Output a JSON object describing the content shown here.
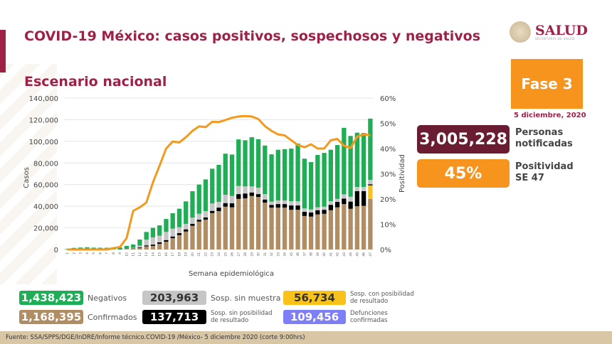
{
  "title": "COVID-19 México: casos positivos, sospechosos y negativos",
  "subtitle": "Escenario nacional",
  "logo": {
    "text": "SALUD",
    "sub": "SECRETARÍA DE SALUD"
  },
  "fase": "Fase 3",
  "fecha": "5 diciembre, 2020",
  "personas": {
    "value": "3,005,228",
    "label1": "Personas",
    "label2": "notificadas"
  },
  "positividad": {
    "value": "45%",
    "label1": "Positividad",
    "label2": "SE 47"
  },
  "colors": {
    "negativos": "#1fae55",
    "confirmados": "#b08d63",
    "sin_muestra": "#c6c6c6",
    "sin_posibilidad": "#000000",
    "con_posibilidad": "#f9c21b",
    "line": "#f39a1e",
    "defunciones": "#7e7ef7",
    "maroon": "#691c32",
    "orange": "#f7941d"
  },
  "legend": [
    {
      "value": "1,438,423",
      "label": "Negativos"
    },
    {
      "value": "1,168,395",
      "label": "Confirmados"
    },
    {
      "value": "203,963",
      "label": "Sosp. sin muestra"
    },
    {
      "value": "137,713",
      "label1": "Sosp. sin posibilidad",
      "label2": "de resultado"
    },
    {
      "value": "56,734",
      "label1": "Sosp. con posibilidad",
      "label2": "de resultado"
    },
    {
      "value": "109,456",
      "label1": "Defunciones",
      "label2": "confirmadas"
    }
  ],
  "footer": "Fuente: SSA/SPPS/DGE/InDRE/Informe técnico.COVID-19 /México- 5 diciembre 2020 (corte 9:00hrs)",
  "chart_data": {
    "type": "bar",
    "stacked": true,
    "xlabel": "Semana epidemiológica",
    "ylabel": "Casos",
    "y2label": "Positividad",
    "ylim": [
      0,
      140000
    ],
    "y2lim": [
      0,
      60
    ],
    "yticks": [
      "0",
      "20,000",
      "40,000",
      "60,000",
      "80,000",
      "100,000",
      "120,000",
      "140,000"
    ],
    "y2ticks": [
      "0%",
      "10%",
      "20%",
      "30%",
      "40%",
      "50%",
      "60%"
    ],
    "grid": true,
    "categories": [
      1,
      2,
      3,
      4,
      5,
      6,
      7,
      8,
      9,
      10,
      11,
      12,
      13,
      14,
      15,
      16,
      17,
      18,
      19,
      20,
      21,
      22,
      23,
      24,
      25,
      26,
      27,
      28,
      29,
      30,
      31,
      32,
      33,
      34,
      35,
      36,
      37,
      38,
      39,
      40,
      41,
      42,
      43,
      44,
      45,
      46,
      47
    ],
    "series": [
      {
        "key": "confirmados",
        "values": [
          0,
          0,
          0,
          0,
          0,
          0,
          0,
          0,
          0,
          300,
          800,
          1500,
          2900,
          3300,
          5300,
          7200,
          10500,
          13300,
          16600,
          21900,
          25800,
          27600,
          33700,
          35500,
          39600,
          39000,
          46800,
          47300,
          49500,
          48600,
          43300,
          38700,
          38700,
          38700,
          36700,
          36700,
          31000,
          30400,
          32400,
          33000,
          36300,
          39000,
          42000,
          37600,
          40000,
          40000,
          46700
        ]
      },
      {
        "key": "con_posibilidad",
        "values": [
          0,
          0,
          0,
          0,
          0,
          0,
          0,
          0,
          0,
          0,
          0,
          0,
          0,
          0,
          0,
          0,
          0,
          0,
          0,
          0,
          0,
          0,
          0,
          0,
          0,
          0,
          0,
          0,
          0,
          0,
          0,
          0,
          0,
          0,
          0,
          0,
          0,
          0,
          0,
          0,
          0,
          0,
          0,
          0,
          0,
          300,
          12600
        ]
      },
      {
        "key": "sin_posibilidad",
        "values": [
          0,
          0,
          0,
          0,
          0,
          0,
          0,
          0,
          0,
          100,
          300,
          600,
          900,
          1200,
          1300,
          1500,
          1500,
          1800,
          2000,
          1800,
          1700,
          2000,
          2000,
          3200,
          3300,
          3700,
          4400,
          4500,
          3200,
          2600,
          2900,
          2500,
          3300,
          3300,
          4000,
          4000,
          3800,
          3800,
          3900,
          3700,
          5000,
          5000,
          5000,
          6700,
          13900,
          13600,
          1000
        ]
      },
      {
        "key": "sin_muestra",
        "values": [
          0,
          0,
          0,
          0,
          0,
          0,
          0,
          0,
          0,
          200,
          500,
          1500,
          5300,
          6700,
          6100,
          7500,
          7300,
          5500,
          5100,
          5700,
          5500,
          5900,
          6800,
          5300,
          7700,
          6800,
          7500,
          6500,
          5600,
          5900,
          5000,
          3000,
          3300,
          3300,
          3900,
          3900,
          3200,
          2800,
          2700,
          2900,
          3300,
          2800,
          4000,
          4500,
          3900,
          3900,
          4000
        ]
      },
      {
        "key": "negativos",
        "values": [
          500,
          1500,
          1800,
          2000,
          1700,
          1600,
          1600,
          1800,
          1800,
          2700,
          3000,
          5600,
          7100,
          8800,
          9600,
          12000,
          14200,
          17100,
          20800,
          24500,
          27000,
          29300,
          32200,
          34300,
          38000,
          38300,
          43100,
          42700,
          45500,
          44900,
          44900,
          43800,
          46900,
          47500,
          48700,
          53400,
          46000,
          43800,
          48400,
          49700,
          47600,
          49800,
          61500,
          56200,
          50200,
          49900,
          56700
        ]
      }
    ],
    "line": {
      "key": "positividad",
      "axis": "right",
      "values": [
        0,
        0,
        0,
        0,
        0,
        0,
        0,
        0.5,
        1,
        4.5,
        15.3,
        16.7,
        18.6,
        26.6,
        33.2,
        40,
        42.8,
        42.4,
        44.5,
        47,
        48.8,
        48.5,
        50.6,
        50.5,
        51.3,
        52.2,
        52.7,
        52.9,
        52.7,
        51.7,
        48.9,
        47,
        45.6,
        45.2,
        43.3,
        41.4,
        40.5,
        41.7,
        40,
        40,
        43.3,
        43.8,
        41.1,
        40.2,
        44.7,
        45.6,
        45.3
      ]
    }
  }
}
